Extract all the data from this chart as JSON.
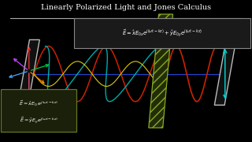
{
  "title": "Linearly Polarized Light and Jones Calculus",
  "title_color": "#ffffff",
  "bg_color": "#000000",
  "wave_color_red": "#cc2200",
  "wave_color_teal": "#008888",
  "wave_color_yellow": "#ddcc00",
  "wave_color_blue": "#2244cc",
  "panel_color": "#bbbbbb",
  "line_underline_color": "#aaaaaa",
  "hatch_color": "#99aa55",
  "eq_box_edge": "#888888",
  "sub_box_edge": "#667722",
  "sub_box_face": "#1a200a",
  "eq_box_face": "#1a1a1a"
}
